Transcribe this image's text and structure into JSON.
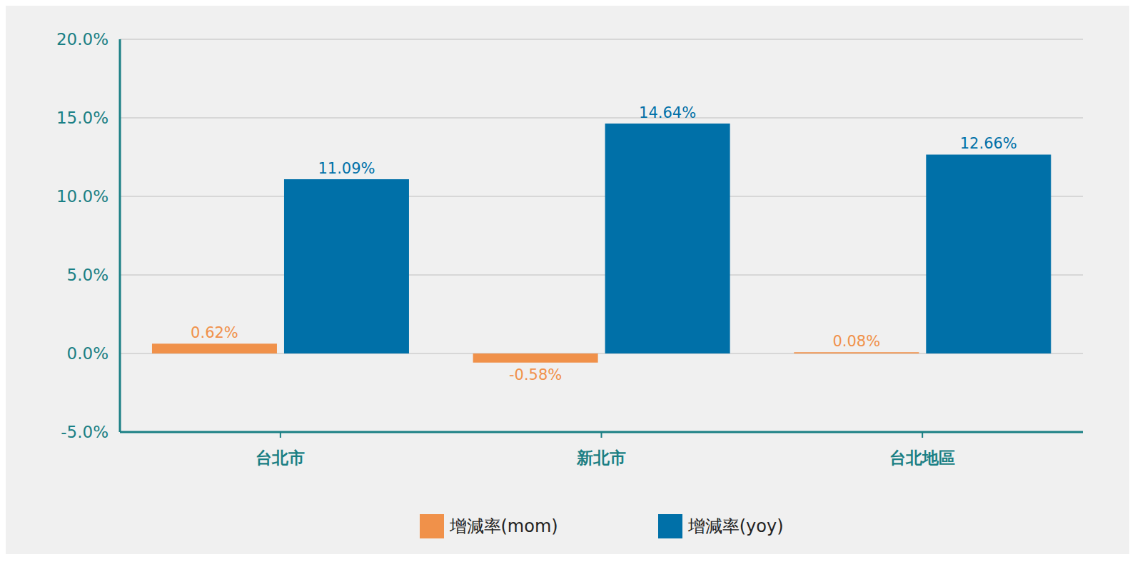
{
  "chart_data": {
    "type": "bar",
    "categories": [
      "台北市",
      "新北市",
      "台北地區"
    ],
    "series": [
      {
        "name": "增減率(mom)",
        "color": "#f0914a",
        "values": [
          0.62,
          -0.58,
          0.08
        ],
        "value_labels": [
          "0.62%",
          "-0.58%",
          "0.08%"
        ]
      },
      {
        "name": "增減率(yoy)",
        "color": "#0070a8",
        "values": [
          11.09,
          14.64,
          12.66
        ],
        "value_labels": [
          "11.09%",
          "14.64%",
          "12.66%"
        ]
      }
    ],
    "ylim": [
      -5,
      20
    ],
    "yticks": [
      {
        "value": -5,
        "label": "-5.0%"
      },
      {
        "value": 0,
        "label": "0.0%"
      },
      {
        "value": 5,
        "label": "5.0%"
      },
      {
        "value": 10,
        "label": "10.0%"
      },
      {
        "value": 15,
        "label": "15.0%"
      },
      {
        "value": 20,
        "label": "20.0%"
      }
    ],
    "grid": true,
    "data_labels": true,
    "legend": "bottom"
  }
}
